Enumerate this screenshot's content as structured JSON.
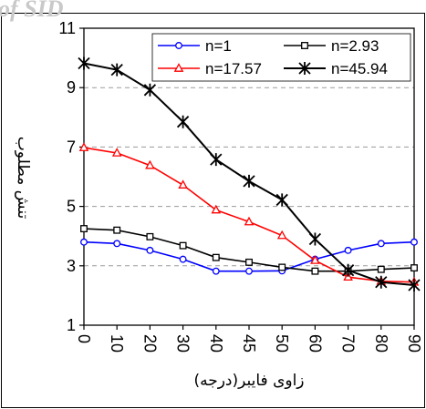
{
  "watermark": "of SID",
  "chart_data": {
    "type": "line",
    "title": "",
    "xlabel": "زاوی فایبر(درجه)",
    "ylabel": "تنش مطلوب",
    "x": [
      0,
      10,
      20,
      30,
      40,
      45,
      50,
      60,
      70,
      80,
      90
    ],
    "xtick_labels": [
      "0",
      "10",
      "20",
      "30",
      "40",
      "45",
      "50",
      "60",
      "70",
      "80",
      "90"
    ],
    "ylim": [
      1,
      11
    ],
    "yticks": [
      1,
      3,
      5,
      7,
      9,
      11
    ],
    "ytick_labels": [
      "1",
      "3",
      "5",
      "7",
      "9",
      "11"
    ],
    "grid": "horizontal-dashed",
    "legend_position": "top-right",
    "series": [
      {
        "name": "n=1",
        "color": "#0000ff",
        "marker": "circle",
        "values": [
          3.8,
          3.75,
          3.52,
          3.22,
          2.82,
          2.82,
          2.83,
          3.22,
          3.52,
          3.75,
          3.8
        ]
      },
      {
        "name": "n=2.93",
        "color": "#000000",
        "marker": "square",
        "values": [
          4.25,
          4.2,
          3.98,
          3.68,
          3.28,
          3.12,
          2.95,
          2.82,
          2.82,
          2.88,
          2.93
        ]
      },
      {
        "name": "n=17.57",
        "color": "#ff0000",
        "marker": "triangle",
        "values": [
          6.98,
          6.8,
          6.38,
          5.72,
          4.88,
          4.48,
          4.02,
          3.18,
          2.62,
          2.48,
          2.45
        ]
      },
      {
        "name": "n=45.94",
        "color": "#000000",
        "marker": "star",
        "values": [
          9.82,
          9.6,
          8.92,
          7.85,
          6.58,
          5.85,
          5.22,
          3.9,
          2.85,
          2.45,
          2.35
        ]
      }
    ]
  }
}
